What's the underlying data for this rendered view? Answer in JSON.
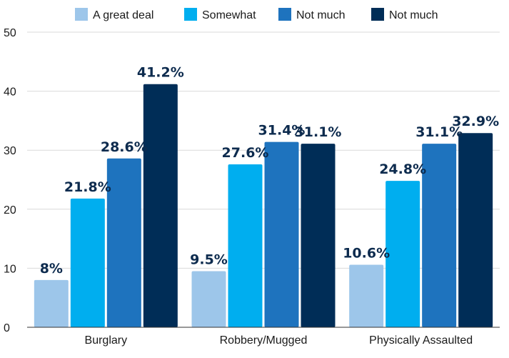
{
  "chart_data": {
    "type": "bar",
    "categories": [
      "Burglary",
      "Robbery/Mugged",
      "Physically Assaulted"
    ],
    "series": [
      {
        "name": "A great deal",
        "color": "#9dc6ea",
        "values": [
          8,
          9.5,
          10.6
        ],
        "labels": [
          "8%",
          "9.5%",
          "10.6%"
        ]
      },
      {
        "name": "Somewhat",
        "color": "#00aeef",
        "values": [
          21.8,
          27.6,
          24.8
        ],
        "labels": [
          "21.8%",
          "27.6%",
          "24.8%"
        ]
      },
      {
        "name": "Not much",
        "color": "#1e73be",
        "values": [
          28.6,
          31.4,
          31.1
        ],
        "labels": [
          "28.6%",
          "31.4%",
          "31.1%"
        ]
      },
      {
        "name": "Not much",
        "color": "#002d57",
        "values": [
          41.2,
          31.1,
          32.9
        ],
        "labels": [
          "41.2%",
          "31.1%",
          "32.9%"
        ]
      }
    ],
    "yticks": [
      "0",
      "10",
      "20",
      "30",
      "40",
      "50"
    ],
    "ylim": [
      0,
      50
    ],
    "grid": true,
    "legend": "top"
  }
}
